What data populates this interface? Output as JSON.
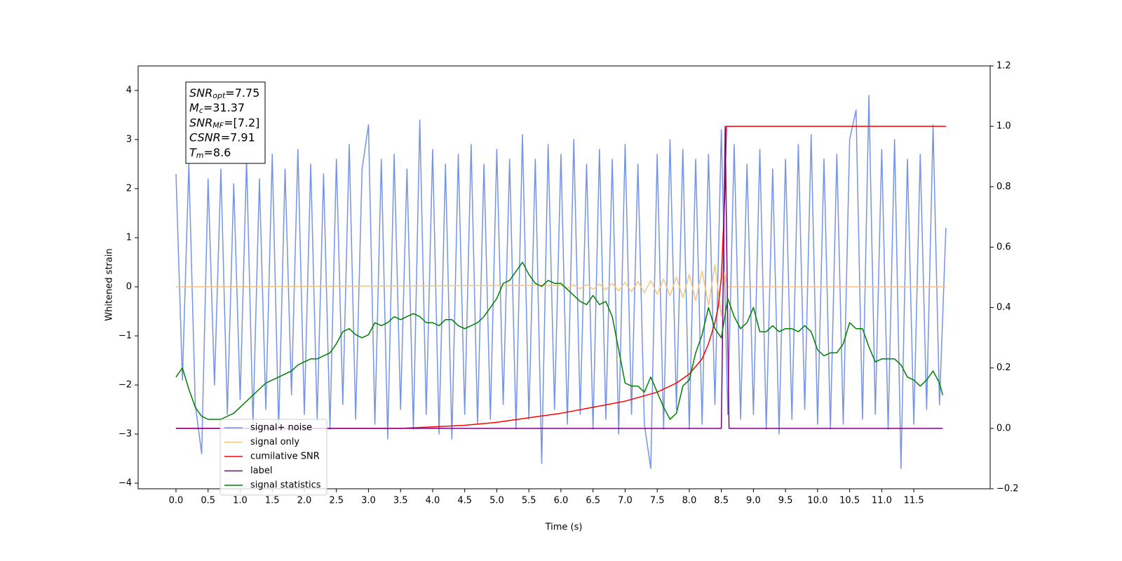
{
  "chart_data": {
    "type": "line",
    "xlabel": "Time (s)",
    "ylabel": "Whitened strain",
    "xlim": [
      -0.59,
      12.69
    ],
    "ylim": [
      -4.114,
      4.5
    ],
    "y2lim": [
      -0.2,
      1.2
    ],
    "xticks": [
      {
        "value": 0,
        "label": "0.0"
      },
      0.5,
      {
        "value": 1,
        "label": "1.0"
      },
      1.5,
      {
        "value": 2,
        "label": "2.0"
      },
      2.5,
      {
        "value": 3,
        "label": "3.0"
      },
      3.5,
      {
        "value": 4,
        "label": "4.0"
      },
      4.5,
      {
        "value": 5,
        "label": "5.0"
      },
      5.5,
      {
        "value": 6,
        "label": "6.0"
      },
      6.5,
      {
        "value": 7,
        "label": "7.0"
      },
      7.5,
      {
        "value": 8,
        "label": "8.0"
      },
      8.5,
      {
        "value": 9,
        "label": "9.0"
      },
      9.5,
      {
        "value": 10,
        "label": "10.0"
      },
      10.5,
      {
        "value": 11,
        "label": "11.0"
      },
      11.5
    ],
    "yticks": [
      {
        "value": -4,
        "label": "−4"
      },
      {
        "value": -3,
        "label": "−3"
      },
      {
        "value": -2,
        "label": "−2"
      },
      {
        "value": -1,
        "label": "−1"
      },
      0,
      1,
      2,
      3,
      4
    ],
    "y2ticks": [
      {
        "value": -0.2,
        "label": "−0.2"
      },
      {
        "value": 0,
        "label": "0.0"
      },
      0.2,
      0.4,
      0.6,
      0.8,
      {
        "value": 1,
        "label": "1.0"
      },
      1.2
    ],
    "legend": "lower left",
    "annotation": [
      {
        "main": "SNR",
        "sub": "opt",
        "rest": "=7.75"
      },
      {
        "main": "M",
        "sub": "c",
        "rest": "=31.37"
      },
      {
        "main": "SNR",
        "sub": "MF",
        "rest": "=[7.2]"
      },
      {
        "main": "CSNR",
        "sub": null,
        "rest": "=7.91"
      },
      {
        "main": "T",
        "sub": "m",
        "rest": "=8.6"
      }
    ],
    "series": [
      {
        "name": "signal+ noise",
        "color": "#7593e7",
        "x": [
          0,
          0.1,
          0.2,
          0.3,
          0.4,
          0.5,
          0.6,
          0.7,
          0.8,
          0.9,
          1,
          1.1,
          1.2,
          1.3,
          1.4,
          1.5,
          1.6,
          1.7,
          1.8,
          1.9,
          2,
          2.1,
          2.2,
          2.3,
          2.4,
          2.5,
          2.6,
          2.7,
          2.8,
          2.9,
          3,
          3.1,
          3.2,
          3.3,
          3.4,
          3.5,
          3.6,
          3.7,
          3.8,
          3.9,
          4,
          4.1,
          4.2,
          4.3,
          4.4,
          4.5,
          4.6,
          4.7,
          4.8,
          4.9,
          5,
          5.1,
          5.2,
          5.3,
          5.4,
          5.5,
          5.6,
          5.7,
          5.8,
          5.9,
          6,
          6.1,
          6.2,
          6.3,
          6.4,
          6.5,
          6.6,
          6.7,
          6.8,
          6.9,
          7,
          7.1,
          7.2,
          7.3,
          7.4,
          7.5,
          7.6,
          7.7,
          7.8,
          7.9,
          8,
          8.1,
          8.2,
          8.3,
          8.4,
          8.5,
          8.6,
          8.7,
          8.8,
          8.9,
          9,
          9.1,
          9.2,
          9.3,
          9.4,
          9.5,
          9.6,
          9.7,
          9.8,
          9.9,
          10,
          10.1,
          10.2,
          10.3,
          10.4,
          10.5,
          10.6,
          10.7,
          10.8,
          10.9,
          11,
          11.1,
          11.2,
          11.3,
          11.4,
          11.5,
          11.6,
          11.7,
          11.8,
          11.9,
          12
        ],
        "values": [
          2.3,
          -1.9,
          2.5,
          -2.4,
          -3.4,
          2.2,
          -2.0,
          2.4,
          -2.6,
          2.1,
          -2.3,
          2.6,
          -2.8,
          2.2,
          -2.5,
          2.7,
          -2.9,
          2.4,
          -2.2,
          2.8,
          -2.6,
          2.5,
          -2.7,
          2.3,
          -2.9,
          2.6,
          -2.4,
          2.9,
          -2.7,
          2.4,
          3.3,
          -2.8,
          2.6,
          -3.1,
          2.7,
          -2.5,
          2.4,
          -2.9,
          3.4,
          -2.6,
          2.8,
          -3.0,
          2.5,
          -3.1,
          2.7,
          -2.6,
          2.9,
          -2.8,
          2.5,
          -2.7,
          2.8,
          -2.4,
          2.6,
          -2.9,
          3.1,
          -2.7,
          2.6,
          -3.6,
          2.9,
          -2.5,
          2.7,
          -2.8,
          3.0,
          -2.6,
          2.5,
          -2.9,
          2.8,
          -2.7,
          2.6,
          -3.0,
          2.9,
          -2.6,
          2.5,
          -2.8,
          -3.7,
          2.7,
          -2.9,
          3.0,
          -2.5,
          2.8,
          -2.9,
          2.6,
          -2.8,
          2.7,
          -2.4,
          3.2,
          -2.6,
          2.9,
          -2.7,
          2.5,
          -2.6,
          2.8,
          -2.9,
          2.4,
          -3.0,
          2.6,
          -2.7,
          2.9,
          -2.5,
          3.1,
          -2.8,
          2.6,
          -2.9,
          2.7,
          -2.8,
          3.0,
          3.6,
          -2.7,
          3.9,
          -2.6,
          2.8,
          -2.9,
          3.0,
          -3.7,
          2.6,
          -2.8,
          2.7,
          -2.5,
          3.3,
          -2.4,
          1.2
        ]
      },
      {
        "name": "signal only",
        "color": "#f7c47c",
        "x": [
          0,
          6,
          6.1,
          6.2,
          6.3,
          6.4,
          6.5,
          6.6,
          6.7,
          6.8,
          6.9,
          7,
          7.1,
          7.2,
          7.3,
          7.4,
          7.5,
          7.6,
          7.7,
          7.8,
          7.9,
          8,
          8.1,
          8.2,
          8.3,
          8.4,
          8.5,
          8.55,
          8.6,
          12
        ],
        "values": [
          0,
          0.03,
          -0.03,
          0.04,
          -0.04,
          0.05,
          -0.05,
          0.06,
          -0.06,
          0.07,
          -0.08,
          0.09,
          -0.1,
          0.11,
          -0.12,
          0.13,
          -0.15,
          0.16,
          -0.18,
          0.2,
          -0.22,
          0.25,
          -0.28,
          0.32,
          -0.38,
          0.45,
          -0.6,
          0.3,
          0,
          0
        ]
      },
      {
        "name": "cumilative SNR",
        "color": "#ff0000",
        "axis": "y2",
        "x": [
          0,
          3.5,
          4,
          4.5,
          5,
          5.5,
          6,
          6.5,
          7,
          7.5,
          7.8,
          8,
          8.2,
          8.3,
          8.4,
          8.45,
          8.5,
          8.55,
          8.58,
          12
        ],
        "values": [
          0,
          0,
          0.005,
          0.01,
          0.02,
          0.035,
          0.05,
          0.07,
          0.09,
          0.12,
          0.15,
          0.18,
          0.23,
          0.28,
          0.35,
          0.4,
          0.5,
          0.75,
          1,
          1
        ]
      },
      {
        "name": "label",
        "color": "#800080",
        "axis": "y2",
        "x": [
          0,
          8.5,
          8.56,
          8.62,
          11.95
        ],
        "values": [
          0,
          0,
          1,
          0,
          0
        ]
      },
      {
        "name": "signal statistics",
        "color": "#008000",
        "axis": "y2",
        "x": [
          0,
          0.1,
          0.2,
          0.3,
          0.4,
          0.5,
          0.6,
          0.7,
          0.8,
          0.9,
          1,
          1.1,
          1.2,
          1.3,
          1.4,
          1.5,
          1.6,
          1.7,
          1.8,
          1.9,
          2,
          2.1,
          2.2,
          2.3,
          2.4,
          2.5,
          2.6,
          2.7,
          2.8,
          2.9,
          3,
          3.1,
          3.2,
          3.3,
          3.4,
          3.5,
          3.6,
          3.7,
          3.8,
          3.9,
          4,
          4.1,
          4.2,
          4.3,
          4.4,
          4.5,
          4.6,
          4.7,
          4.8,
          4.9,
          5,
          5.1,
          5.2,
          5.3,
          5.4,
          5.5,
          5.6,
          5.7,
          5.8,
          5.9,
          6,
          6.1,
          6.2,
          6.3,
          6.4,
          6.5,
          6.6,
          6.7,
          6.8,
          6.9,
          7,
          7.1,
          7.2,
          7.3,
          7.4,
          7.5,
          7.6,
          7.7,
          7.8,
          7.9,
          8,
          8.1,
          8.2,
          8.3,
          8.4,
          8.5,
          8.6,
          8.7,
          8.8,
          8.9,
          9,
          9.1,
          9.2,
          9.3,
          9.4,
          9.5,
          9.6,
          9.7,
          9.8,
          9.9,
          10,
          10.1,
          10.2,
          10.3,
          10.4,
          10.5,
          10.6,
          10.7,
          10.8,
          10.9,
          11,
          11.1,
          11.2,
          11.3,
          11.4,
          11.5,
          11.6,
          11.7,
          11.8,
          11.9,
          11.95
        ],
        "values": [
          0.17,
          0.2,
          0.13,
          0.07,
          0.04,
          0.03,
          0.03,
          0.03,
          0.04,
          0.05,
          0.07,
          0.09,
          0.11,
          0.13,
          0.15,
          0.16,
          0.17,
          0.18,
          0.19,
          0.21,
          0.22,
          0.23,
          0.23,
          0.24,
          0.25,
          0.28,
          0.32,
          0.33,
          0.31,
          0.3,
          0.31,
          0.35,
          0.34,
          0.35,
          0.37,
          0.36,
          0.37,
          0.38,
          0.37,
          0.35,
          0.35,
          0.34,
          0.36,
          0.36,
          0.34,
          0.33,
          0.34,
          0.35,
          0.37,
          0.4,
          0.43,
          0.48,
          0.49,
          0.52,
          0.55,
          0.51,
          0.48,
          0.47,
          0.49,
          0.48,
          0.48,
          0.46,
          0.44,
          0.42,
          0.41,
          0.44,
          0.41,
          0.42,
          0.37,
          0.26,
          0.15,
          0.14,
          0.14,
          0.12,
          0.17,
          0.12,
          0.07,
          0.03,
          0.05,
          0.14,
          0.16,
          0.25,
          0.31,
          0.4,
          0.33,
          0.3,
          0.43,
          0.37,
          0.33,
          0.35,
          0.4,
          0.32,
          0.32,
          0.34,
          0.32,
          0.33,
          0.33,
          0.32,
          0.34,
          0.32,
          0.26,
          0.24,
          0.25,
          0.25,
          0.28,
          0.35,
          0.33,
          0.33,
          0.27,
          0.22,
          0.23,
          0.23,
          0.23,
          0.21,
          0.17,
          0.16,
          0.14,
          0.16,
          0.19,
          0.15,
          0.11
        ]
      }
    ]
  }
}
